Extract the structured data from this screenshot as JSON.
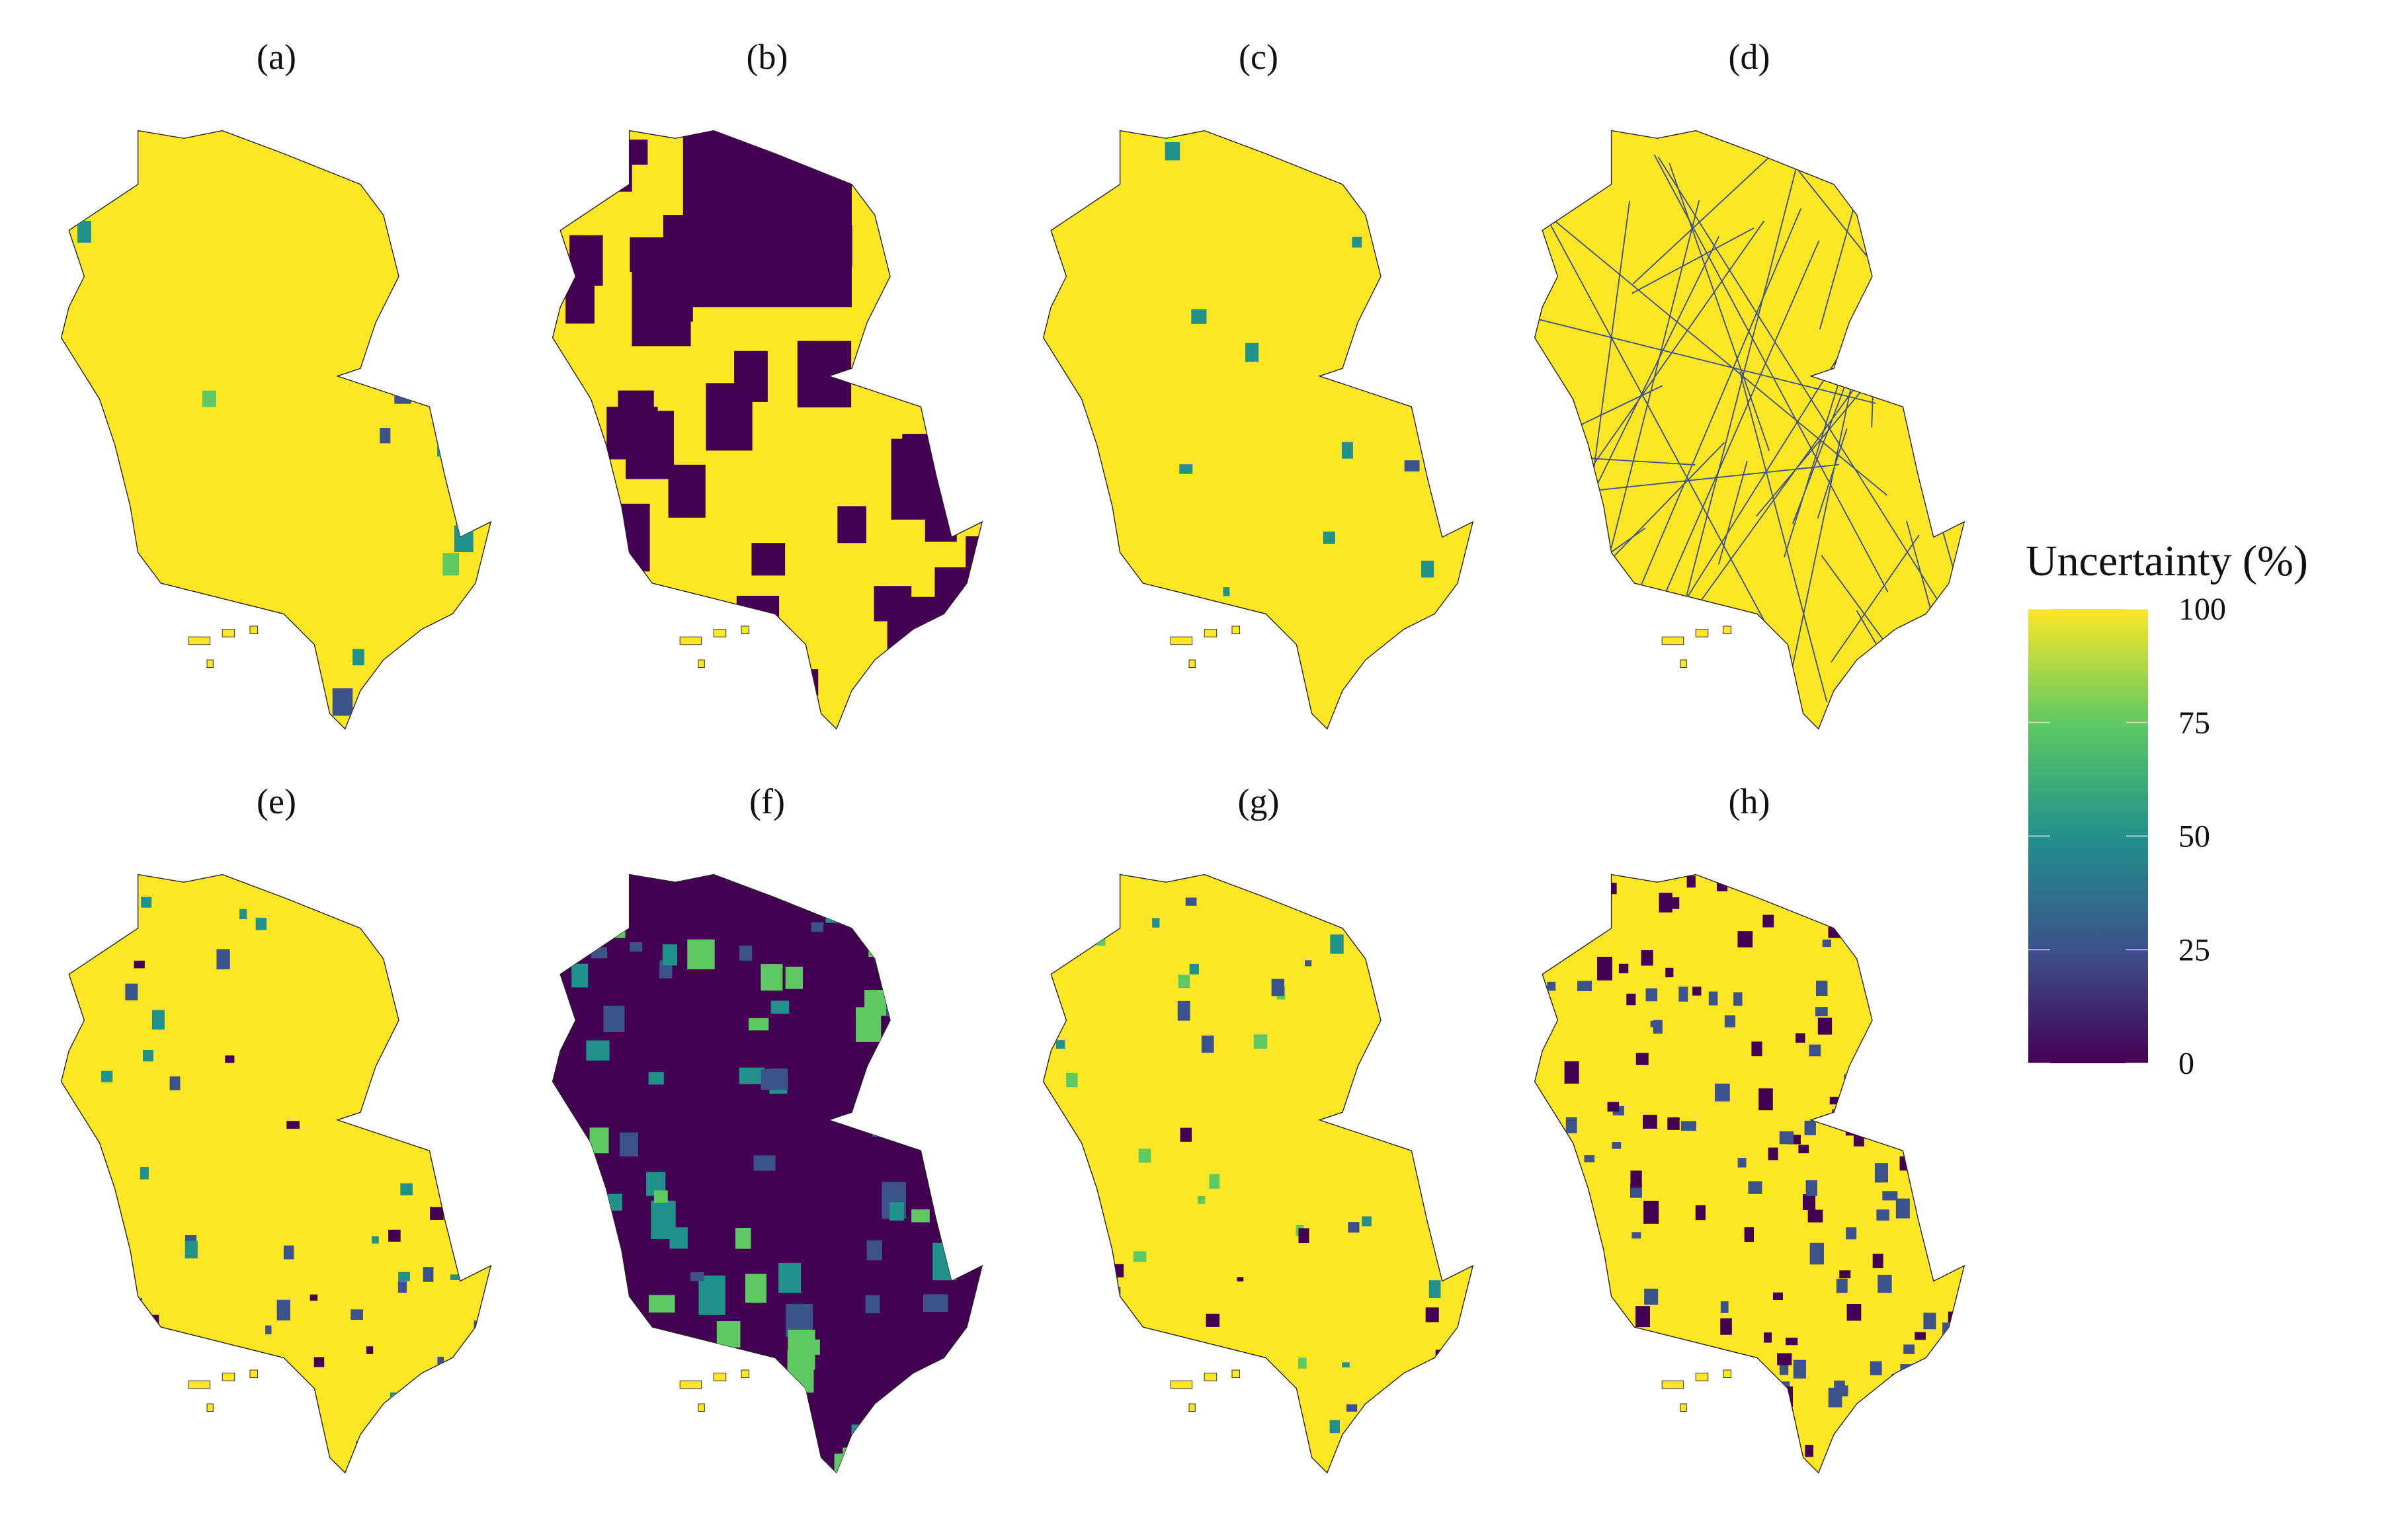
{
  "panels": [
    "(a)",
    "(b)",
    "(c)",
    "(d)",
    "(e)",
    "(f)",
    "(g)",
    "(h)"
  ],
  "legend": {
    "title": "Uncertainty (%)",
    "range": [
      0,
      100
    ],
    "ticks": [
      0,
      25,
      50,
      75,
      100
    ],
    "colors": [
      "#440154",
      "#3b528b",
      "#21918c",
      "#5ec962",
      "#fde725"
    ]
  }
}
